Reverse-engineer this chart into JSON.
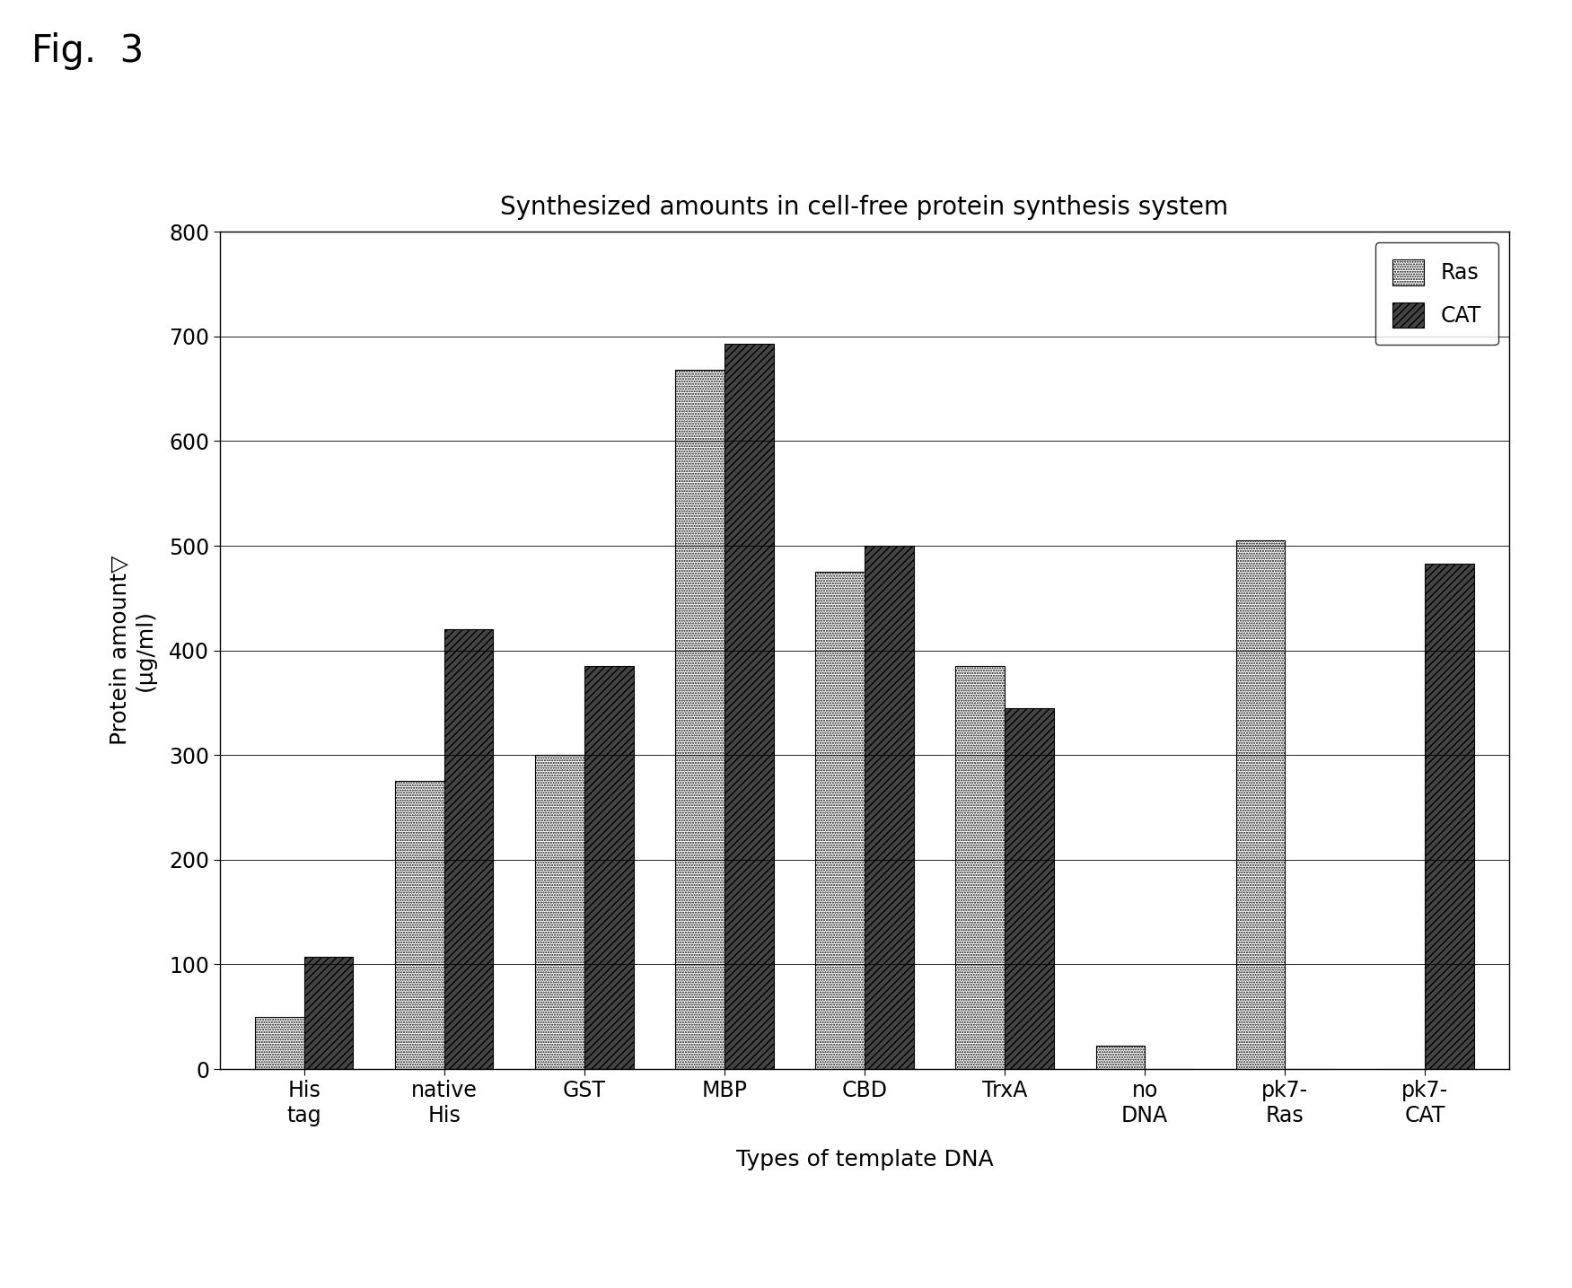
{
  "title": "Synthesized amounts in cell-free protein synthesis system",
  "xlabel": "Types of template DNA",
  "categories": [
    "His\ntag",
    "native\nHis",
    "GST",
    "MBP",
    "CBD",
    "TrxA",
    "no\nDNA",
    "pk7-\nRas",
    "pk7-\nCAT"
  ],
  "ras_values": [
    50,
    275,
    300,
    668,
    475,
    385,
    22,
    505,
    0
  ],
  "cat_values": [
    107,
    420,
    385,
    693,
    500,
    345,
    0,
    0,
    483
  ],
  "ras_color": "#ffffff",
  "cat_color": "#1a1a1a",
  "ylim": [
    0,
    800
  ],
  "yticks": [
    0,
    100,
    200,
    300,
    400,
    500,
    600,
    700,
    800
  ],
  "fig_label": "Fig.  3",
  "bar_width": 0.35,
  "legend_labels": [
    "Ras",
    "CAT"
  ],
  "title_fontsize": 20,
  "axis_label_fontsize": 18,
  "tick_fontsize": 17,
  "legend_fontsize": 17,
  "fig_label_fontsize": 30,
  "ylabel_line1": "Protein amount▽",
  "ylabel_line2": "µg/ml)"
}
